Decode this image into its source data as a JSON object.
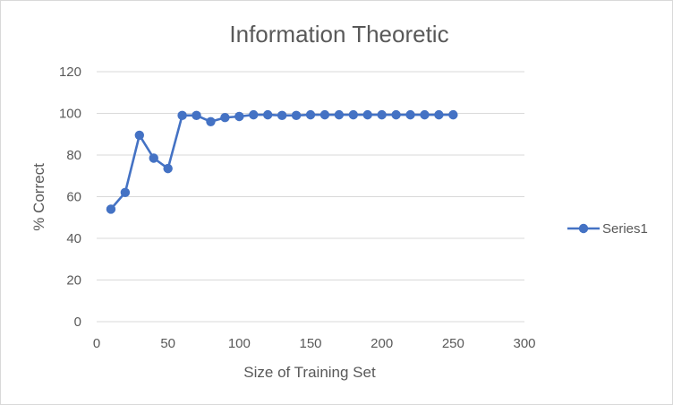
{
  "chart_data": {
    "type": "line",
    "title": "Information Theoretic",
    "xlabel": "Size of Training Set",
    "ylabel": "% Correct",
    "xlim": [
      0,
      300
    ],
    "ylim": [
      0,
      120
    ],
    "x_ticks": [
      0,
      50,
      100,
      150,
      200,
      250,
      300
    ],
    "y_ticks": [
      0,
      20,
      40,
      60,
      80,
      100,
      120
    ],
    "grid": "horizontal",
    "legend_position": "right",
    "series": [
      {
        "name": "Series1",
        "color": "#4472c4",
        "marker": "circle",
        "x": [
          10,
          20,
          30,
          40,
          50,
          60,
          70,
          80,
          90,
          100,
          110,
          120,
          130,
          140,
          150,
          160,
          170,
          180,
          190,
          200,
          210,
          220,
          230,
          240,
          250
        ],
        "y": [
          54,
          62,
          89.5,
          78.5,
          73.5,
          99,
          99,
          96,
          98,
          98.5,
          99.3,
          99.3,
          99,
          99,
          99.3,
          99.3,
          99.3,
          99.3,
          99.3,
          99.3,
          99.3,
          99.3,
          99.3,
          99.3,
          99.3
        ]
      }
    ]
  }
}
